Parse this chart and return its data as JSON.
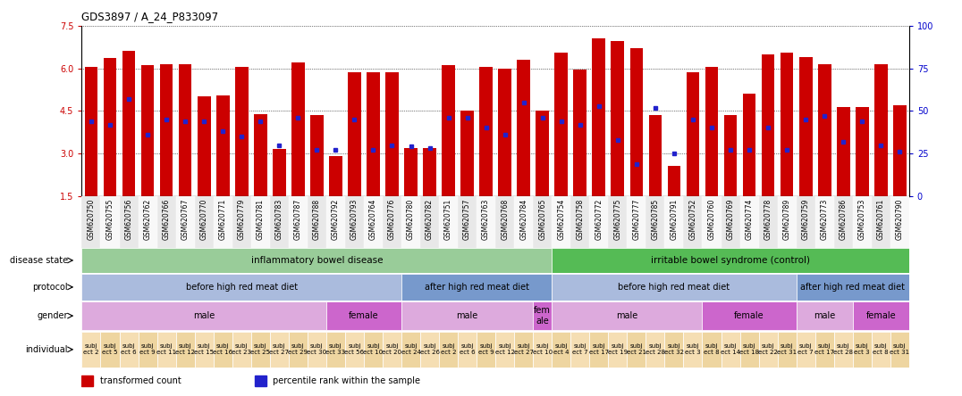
{
  "title": "GDS3897 / A_24_P833097",
  "samples": [
    "GSM620750",
    "GSM620755",
    "GSM620756",
    "GSM620762",
    "GSM620766",
    "GSM620767",
    "GSM620770",
    "GSM620771",
    "GSM620779",
    "GSM620781",
    "GSM620783",
    "GSM620787",
    "GSM620788",
    "GSM620792",
    "GSM620793",
    "GSM620764",
    "GSM620776",
    "GSM620780",
    "GSM620782",
    "GSM620751",
    "GSM620757",
    "GSM620763",
    "GSM620768",
    "GSM620784",
    "GSM620765",
    "GSM620754",
    "GSM620758",
    "GSM620772",
    "GSM620775",
    "GSM620777",
    "GSM620785",
    "GSM620791",
    "GSM620752",
    "GSM620760",
    "GSM620769",
    "GSM620774",
    "GSM620778",
    "GSM620789",
    "GSM620759",
    "GSM620773",
    "GSM620786",
    "GSM620753",
    "GSM620761",
    "GSM620790"
  ],
  "bar_heights": [
    6.05,
    6.35,
    6.6,
    6.1,
    6.15,
    6.13,
    5.0,
    5.05,
    6.05,
    4.4,
    3.15,
    6.2,
    4.35,
    2.9,
    5.85,
    5.85,
    5.85,
    3.2,
    3.2,
    6.1,
    4.5,
    6.05,
    6.0,
    6.3,
    4.5,
    6.55,
    5.95,
    7.05,
    6.95,
    6.7,
    4.35,
    2.55,
    5.85,
    6.05,
    4.35,
    5.1,
    6.5,
    6.55,
    6.4,
    6.15,
    4.65,
    4.65,
    6.15,
    4.7
  ],
  "percentile_ranks": [
    44,
    42,
    57,
    36,
    45,
    44,
    44,
    38,
    35,
    44,
    30,
    46,
    27,
    27,
    45,
    27,
    30,
    29,
    28,
    46,
    46,
    40,
    36,
    55,
    46,
    44,
    42,
    53,
    33,
    19,
    52,
    25,
    45,
    40,
    27,
    27,
    40,
    27,
    45,
    47,
    32,
    44,
    30,
    26
  ],
  "ylim_left": [
    1.5,
    7.5
  ],
  "ylim_right": [
    0,
    100
  ],
  "bar_color": "#CC0000",
  "dot_color": "#2222CC",
  "annotation_rows": [
    {
      "label": "disease state",
      "segments": [
        {
          "text": "inflammatory bowel disease",
          "start": 0,
          "end": 25,
          "color": "#99CC99"
        },
        {
          "text": "irritable bowel syndrome (control)",
          "start": 25,
          "end": 44,
          "color": "#55BB55"
        }
      ]
    },
    {
      "label": "protocol",
      "segments": [
        {
          "text": "before high red meat diet",
          "start": 0,
          "end": 17,
          "color": "#AABBDD"
        },
        {
          "text": "after high red meat diet",
          "start": 17,
          "end": 25,
          "color": "#7799CC"
        },
        {
          "text": "before high red meat diet",
          "start": 25,
          "end": 38,
          "color": "#AABBDD"
        },
        {
          "text": "after high red meat diet",
          "start": 38,
          "end": 44,
          "color": "#7799CC"
        }
      ]
    },
    {
      "label": "gender",
      "segments": [
        {
          "text": "male",
          "start": 0,
          "end": 13,
          "color": "#DDAADD"
        },
        {
          "text": "female",
          "start": 13,
          "end": 17,
          "color": "#CC66CC"
        },
        {
          "text": "male",
          "start": 17,
          "end": 24,
          "color": "#DDAADD"
        },
        {
          "text": "fem\nale",
          "start": 24,
          "end": 25,
          "color": "#CC66CC"
        },
        {
          "text": "male",
          "start": 25,
          "end": 33,
          "color": "#DDAADD"
        },
        {
          "text": "female",
          "start": 33,
          "end": 38,
          "color": "#CC66CC"
        },
        {
          "text": "male",
          "start": 38,
          "end": 41,
          "color": "#DDAADD"
        },
        {
          "text": "female",
          "start": 41,
          "end": 44,
          "color": "#CC66CC"
        }
      ]
    },
    {
      "label": "individual",
      "segments": [
        {
          "text": "subj\nect 2",
          "start": 0,
          "end": 1,
          "color": "#F5DEB3"
        },
        {
          "text": "subj\nect 5",
          "start": 1,
          "end": 2,
          "color": "#EED5A0"
        },
        {
          "text": "subj\nect 6",
          "start": 2,
          "end": 3,
          "color": "#F5DEB3"
        },
        {
          "text": "subj\nect 9",
          "start": 3,
          "end": 4,
          "color": "#EED5A0"
        },
        {
          "text": "subj\nect 11",
          "start": 4,
          "end": 5,
          "color": "#F5DEB3"
        },
        {
          "text": "subj\nect 12",
          "start": 5,
          "end": 6,
          "color": "#EED5A0"
        },
        {
          "text": "subj\nect 15",
          "start": 6,
          "end": 7,
          "color": "#F5DEB3"
        },
        {
          "text": "subj\nect 16",
          "start": 7,
          "end": 8,
          "color": "#EED5A0"
        },
        {
          "text": "subj\nect 23",
          "start": 8,
          "end": 9,
          "color": "#F5DEB3"
        },
        {
          "text": "subj\nect 25",
          "start": 9,
          "end": 10,
          "color": "#EED5A0"
        },
        {
          "text": "subj\nect 27",
          "start": 10,
          "end": 11,
          "color": "#F5DEB3"
        },
        {
          "text": "subj\nect 29",
          "start": 11,
          "end": 12,
          "color": "#EED5A0"
        },
        {
          "text": "subj\nect 30",
          "start": 12,
          "end": 13,
          "color": "#F5DEB3"
        },
        {
          "text": "subj\nect 33",
          "start": 13,
          "end": 14,
          "color": "#EED5A0"
        },
        {
          "text": "subj\nect 56",
          "start": 14,
          "end": 15,
          "color": "#F5DEB3"
        },
        {
          "text": "subj\nect 10",
          "start": 15,
          "end": 16,
          "color": "#EED5A0"
        },
        {
          "text": "subj\nect 20",
          "start": 16,
          "end": 17,
          "color": "#F5DEB3"
        },
        {
          "text": "subj\nect 24",
          "start": 17,
          "end": 18,
          "color": "#EED5A0"
        },
        {
          "text": "subj\nect 26",
          "start": 18,
          "end": 19,
          "color": "#F5DEB3"
        },
        {
          "text": "subj\nect 2",
          "start": 19,
          "end": 20,
          "color": "#EED5A0"
        },
        {
          "text": "subj\nect 6",
          "start": 20,
          "end": 21,
          "color": "#F5DEB3"
        },
        {
          "text": "subj\nect 9",
          "start": 21,
          "end": 22,
          "color": "#EED5A0"
        },
        {
          "text": "subj\nect 12",
          "start": 22,
          "end": 23,
          "color": "#F5DEB3"
        },
        {
          "text": "subj\nect 27",
          "start": 23,
          "end": 24,
          "color": "#EED5A0"
        },
        {
          "text": "subj\nect 10",
          "start": 24,
          "end": 25,
          "color": "#F5DEB3"
        },
        {
          "text": "subj\nect 4",
          "start": 25,
          "end": 26,
          "color": "#EED5A0"
        },
        {
          "text": "subj\nect 7",
          "start": 26,
          "end": 27,
          "color": "#F5DEB3"
        },
        {
          "text": "subj\nect 17",
          "start": 27,
          "end": 28,
          "color": "#EED5A0"
        },
        {
          "text": "subj\nect 19",
          "start": 28,
          "end": 29,
          "color": "#F5DEB3"
        },
        {
          "text": "subj\nect 21",
          "start": 29,
          "end": 30,
          "color": "#EED5A0"
        },
        {
          "text": "subj\nect 28",
          "start": 30,
          "end": 31,
          "color": "#F5DEB3"
        },
        {
          "text": "subj\nect 32",
          "start": 31,
          "end": 32,
          "color": "#EED5A0"
        },
        {
          "text": "subj\nect 3",
          "start": 32,
          "end": 33,
          "color": "#F5DEB3"
        },
        {
          "text": "subj\nect 8",
          "start": 33,
          "end": 34,
          "color": "#EED5A0"
        },
        {
          "text": "subj\nect 14",
          "start": 34,
          "end": 35,
          "color": "#F5DEB3"
        },
        {
          "text": "subj\nect 18",
          "start": 35,
          "end": 36,
          "color": "#EED5A0"
        },
        {
          "text": "subj\nect 22",
          "start": 36,
          "end": 37,
          "color": "#F5DEB3"
        },
        {
          "text": "subj\nect 31",
          "start": 37,
          "end": 38,
          "color": "#EED5A0"
        },
        {
          "text": "subj\nect 7",
          "start": 38,
          "end": 39,
          "color": "#F5DEB3"
        },
        {
          "text": "subj\nect 17",
          "start": 39,
          "end": 40,
          "color": "#EED5A0"
        },
        {
          "text": "subj\nect 28",
          "start": 40,
          "end": 41,
          "color": "#F5DEB3"
        },
        {
          "text": "subj\nect 3",
          "start": 41,
          "end": 42,
          "color": "#EED5A0"
        },
        {
          "text": "subj\nect 8",
          "start": 42,
          "end": 43,
          "color": "#F5DEB3"
        },
        {
          "text": "subj\nect 31",
          "start": 43,
          "end": 44,
          "color": "#EED5A0"
        }
      ]
    }
  ],
  "yticks_left": [
    1.5,
    3.0,
    4.5,
    6.0,
    7.5
  ],
  "yticks_right": [
    0,
    25,
    50,
    75,
    100
  ],
  "legend_items": [
    {
      "color": "#CC0000",
      "label": "transformed count"
    },
    {
      "color": "#2222CC",
      "label": "percentile rank within the sample"
    }
  ]
}
